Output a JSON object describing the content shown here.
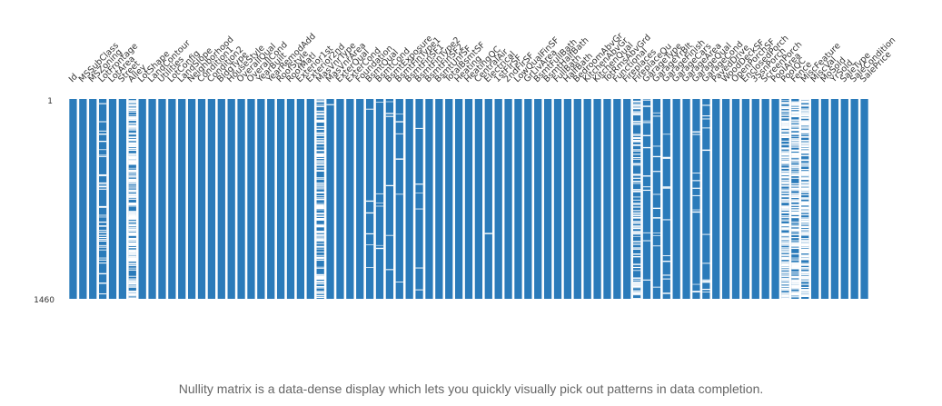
{
  "chart_data": {
    "type": "heatmap",
    "title": "",
    "row_ticks": [
      "1",
      "1460"
    ],
    "columns": [
      {
        "name": "Id",
        "completeness": 1.0
      },
      {
        "name": "MSSubClass",
        "completeness": 1.0
      },
      {
        "name": "MSZoning",
        "completeness": 1.0
      },
      {
        "name": "LotFrontage",
        "completeness": 0.82
      },
      {
        "name": "LotArea",
        "completeness": 1.0
      },
      {
        "name": "Street",
        "completeness": 1.0
      },
      {
        "name": "Alley",
        "completeness": 0.06
      },
      {
        "name": "LotShape",
        "completeness": 1.0
      },
      {
        "name": "LandContour",
        "completeness": 1.0
      },
      {
        "name": "Utilities",
        "completeness": 1.0
      },
      {
        "name": "LotConfig",
        "completeness": 1.0
      },
      {
        "name": "LandSlope",
        "completeness": 1.0
      },
      {
        "name": "Neighborhood",
        "completeness": 1.0
      },
      {
        "name": "Condition1",
        "completeness": 1.0
      },
      {
        "name": "Condition2",
        "completeness": 1.0
      },
      {
        "name": "BldgType",
        "completeness": 1.0
      },
      {
        "name": "HouseStyle",
        "completeness": 1.0
      },
      {
        "name": "OverallQual",
        "completeness": 1.0
      },
      {
        "name": "OverallCond",
        "completeness": 1.0
      },
      {
        "name": "YearBuilt",
        "completeness": 1.0
      },
      {
        "name": "YearRemodAdd",
        "completeness": 1.0
      },
      {
        "name": "RoofStyle",
        "completeness": 1.0
      },
      {
        "name": "RoofMatl",
        "completeness": 1.0
      },
      {
        "name": "Exterior1st",
        "completeness": 1.0
      },
      {
        "name": "Exterior2nd",
        "completeness": 1.0
      },
      {
        "name": "MasVnrType",
        "completeness": 0.4
      },
      {
        "name": "MasVnrArea",
        "completeness": 0.995
      },
      {
        "name": "ExterQual",
        "completeness": 1.0
      },
      {
        "name": "ExterCond",
        "completeness": 1.0
      },
      {
        "name": "Foundation",
        "completeness": 1.0
      },
      {
        "name": "BsmtQual",
        "completeness": 0.975
      },
      {
        "name": "BsmtCond",
        "completeness": 0.975
      },
      {
        "name": "BsmtExposure",
        "completeness": 0.974
      },
      {
        "name": "BsmtFinType1",
        "completeness": 0.975
      },
      {
        "name": "BsmtFinSF1",
        "completeness": 1.0
      },
      {
        "name": "BsmtFinType2",
        "completeness": 0.974
      },
      {
        "name": "BsmtFinSF2",
        "completeness": 1.0
      },
      {
        "name": "BsmtUnfSF",
        "completeness": 1.0
      },
      {
        "name": "TotalBsmtSF",
        "completeness": 1.0
      },
      {
        "name": "Heating",
        "completeness": 1.0
      },
      {
        "name": "HeatingQC",
        "completeness": 1.0
      },
      {
        "name": "CentralAir",
        "completeness": 1.0
      },
      {
        "name": "Electrical",
        "completeness": 0.999
      },
      {
        "name": "1stFlrSF",
        "completeness": 1.0
      },
      {
        "name": "2ndFlrSF",
        "completeness": 1.0
      },
      {
        "name": "LowQualFinSF",
        "completeness": 1.0
      },
      {
        "name": "GrLivArea",
        "completeness": 1.0
      },
      {
        "name": "BsmtFullBath",
        "completeness": 1.0
      },
      {
        "name": "BsmtHalfBath",
        "completeness": 1.0
      },
      {
        "name": "FullBath",
        "completeness": 1.0
      },
      {
        "name": "HalfBath",
        "completeness": 1.0
      },
      {
        "name": "BedroomAbvGr",
        "completeness": 1.0
      },
      {
        "name": "KitchenAbvGr",
        "completeness": 1.0
      },
      {
        "name": "KitchenQual",
        "completeness": 1.0
      },
      {
        "name": "TotRmsAbvGrd",
        "completeness": 1.0
      },
      {
        "name": "Functional",
        "completeness": 1.0
      },
      {
        "name": "Fireplaces",
        "completeness": 1.0
      },
      {
        "name": "FireplaceQu",
        "completeness": 0.53
      },
      {
        "name": "GarageType",
        "completeness": 0.945
      },
      {
        "name": "GarageYrBlt",
        "completeness": 0.945
      },
      {
        "name": "GarageFinish",
        "completeness": 0.945
      },
      {
        "name": "GarageCars",
        "completeness": 1.0
      },
      {
        "name": "GarageArea",
        "completeness": 1.0
      },
      {
        "name": "GarageQual",
        "completeness": 0.945
      },
      {
        "name": "GarageCond",
        "completeness": 0.945
      },
      {
        "name": "PavedDrive",
        "completeness": 1.0
      },
      {
        "name": "WoodDeckSF",
        "completeness": 1.0
      },
      {
        "name": "OpenPorchSF",
        "completeness": 1.0
      },
      {
        "name": "EnclosedPorch",
        "completeness": 1.0
      },
      {
        "name": "3SsnPorch",
        "completeness": 1.0
      },
      {
        "name": "ScreenPorch",
        "completeness": 1.0
      },
      {
        "name": "PoolArea",
        "completeness": 1.0
      },
      {
        "name": "PoolQC",
        "completeness": 0.005
      },
      {
        "name": "Fence",
        "completeness": 0.19
      },
      {
        "name": "MiscFeature",
        "completeness": 0.04
      },
      {
        "name": "MiscVal",
        "completeness": 1.0
      },
      {
        "name": "MoSold",
        "completeness": 1.0
      },
      {
        "name": "YrSold",
        "completeness": 1.0
      },
      {
        "name": "SaleType",
        "completeness": 1.0
      },
      {
        "name": "SaleCondition",
        "completeness": 1.0
      },
      {
        "name": "SalePrice",
        "completeness": 1.0
      }
    ],
    "present_color": "#2b7bba",
    "missing_color": "#ffffff"
  },
  "caption": "Nullity matrix is a data-dense display which lets you quickly visually pick out patterns in data completion."
}
